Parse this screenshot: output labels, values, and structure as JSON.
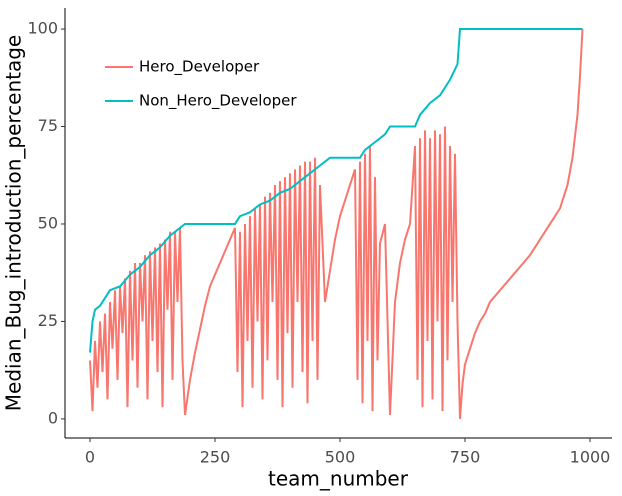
{
  "chart_data": {
    "type": "line",
    "x_label": "team_number",
    "y_label": "Median_Bug_introduction_percentage",
    "xlim": [
      -50,
      1044
    ],
    "xticks": [
      0,
      250,
      500,
      750,
      1000
    ],
    "ylim": [
      -4.9,
      105.4
    ],
    "yticks": [
      0,
      25,
      50,
      75,
      100
    ],
    "grid": false,
    "legend": "top-left",
    "series": [
      {
        "name": "Hero_Developer",
        "color": "#F8766D",
        "x": [
          0,
          5,
          10,
          15,
          20,
          25,
          30,
          35,
          40,
          45,
          50,
          55,
          60,
          65,
          70,
          75,
          80,
          85,
          90,
          95,
          100,
          105,
          110,
          115,
          120,
          125,
          130,
          135,
          140,
          145,
          150,
          155,
          160,
          165,
          170,
          175,
          180,
          185,
          190,
          200,
          210,
          220,
          230,
          240,
          250,
          260,
          270,
          280,
          290,
          295,
          300,
          305,
          310,
          315,
          320,
          325,
          330,
          335,
          340,
          345,
          350,
          355,
          360,
          365,
          370,
          375,
          380,
          385,
          390,
          395,
          400,
          405,
          410,
          415,
          420,
          425,
          430,
          435,
          440,
          445,
          450,
          455,
          460,
          470,
          480,
          490,
          500,
          510,
          520,
          530,
          535,
          540,
          545,
          550,
          555,
          560,
          565,
          570,
          575,
          580,
          590,
          600,
          610,
          620,
          630,
          640,
          650,
          655,
          660,
          665,
          670,
          675,
          680,
          685,
          690,
          695,
          700,
          705,
          710,
          715,
          720,
          725,
          730,
          735,
          740,
          745,
          750,
          760,
          770,
          780,
          790,
          800,
          820,
          840,
          860,
          880,
          900,
          920,
          940,
          955,
          965,
          975,
          980,
          985
        ],
        "values": [
          15,
          2,
          20,
          8,
          25,
          12,
          27,
          5,
          30,
          18,
          33,
          10,
          34,
          22,
          36,
          3,
          38,
          15,
          40,
          8,
          40,
          25,
          42,
          5,
          43,
          20,
          44,
          12,
          45,
          3,
          46,
          28,
          48,
          10,
          48,
          30,
          49,
          15,
          1,
          10,
          17,
          23,
          29,
          34,
          37,
          40,
          43,
          46,
          49,
          12,
          48,
          3,
          50,
          20,
          52,
          8,
          54,
          25,
          55,
          5,
          57,
          15,
          58,
          30,
          60,
          10,
          61,
          3,
          62,
          22,
          63,
          8,
          64,
          30,
          65,
          12,
          66,
          4,
          66,
          20,
          67,
          10,
          60,
          30,
          38,
          46,
          52,
          56,
          60,
          64,
          10,
          66,
          4,
          68,
          20,
          70,
          2,
          62,
          15,
          45,
          50,
          1,
          30,
          40,
          46,
          50,
          70,
          10,
          72,
          3,
          74,
          20,
          72,
          5,
          74,
          25,
          73,
          2,
          75,
          15,
          70,
          30,
          68,
          25,
          0,
          9,
          14,
          18,
          22,
          25,
          27,
          30,
          33,
          36,
          39,
          42,
          46,
          50,
          54,
          60,
          67,
          78,
          88,
          100
        ]
      },
      {
        "name": "Non_Hero_Developer",
        "color": "#00BFC4",
        "x": [
          0,
          5,
          10,
          20,
          30,
          40,
          60,
          80,
          100,
          120,
          140,
          160,
          180,
          190,
          290,
          300,
          320,
          340,
          360,
          380,
          400,
          420,
          440,
          460,
          480,
          540,
          550,
          570,
          590,
          600,
          650,
          660,
          680,
          700,
          720,
          735,
          740,
          985
        ],
        "values": [
          17,
          25,
          28,
          29,
          31,
          33,
          34,
          37,
          39,
          42,
          44,
          47,
          49,
          50,
          50,
          52,
          53,
          55,
          56,
          58,
          59,
          61,
          63,
          65,
          67,
          67,
          69,
          71,
          73,
          75,
          75,
          78,
          81,
          83,
          87,
          91,
          100,
          100
        ]
      }
    ]
  }
}
